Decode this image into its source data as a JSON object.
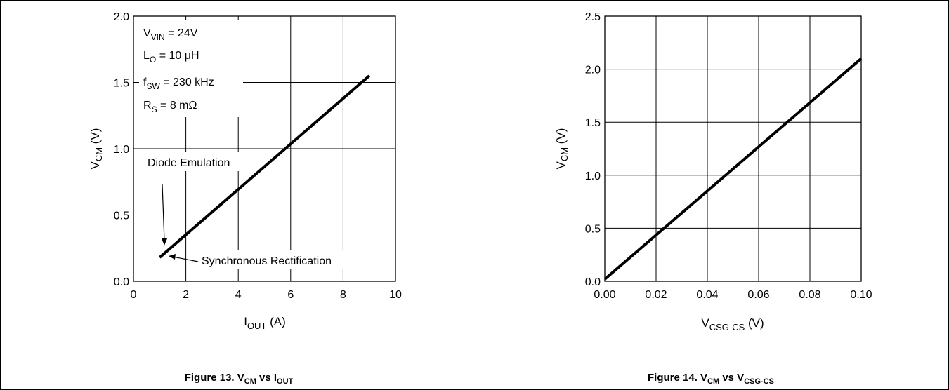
{
  "chart_data": [
    {
      "type": "line",
      "caption": {
        "prefix": "Figure 13. V",
        "sub1": "CM",
        "mid": " vs I",
        "sub2": "OUT"
      },
      "xlabel": {
        "main": "I",
        "sub": "OUT",
        "unit": " (A)"
      },
      "ylabel": {
        "main": "V",
        "sub": "CM",
        "unit": " (V)"
      },
      "xlim": [
        0,
        10
      ],
      "ylim": [
        0,
        2.0
      ],
      "x_ticks": [
        "0",
        "2",
        "4",
        "6",
        "8",
        "10"
      ],
      "y_ticks": [
        "0.0",
        "0.5",
        "1.0",
        "1.5",
        "2.0"
      ],
      "grid": true,
      "series": [
        {
          "x": [
            1,
            9
          ],
          "y": [
            0.18,
            1.55
          ]
        }
      ],
      "conditions": [
        {
          "main": "V",
          "sub": "VIN",
          "rest": " = 24V"
        },
        {
          "main": "L",
          "sub": "O",
          "rest": " = 10 μH"
        },
        {
          "main": "f",
          "sub": "SW",
          "rest": " = 230 kHz"
        },
        {
          "main": "R",
          "sub": "S",
          "rest": " = 8 mΩ"
        }
      ],
      "annotations": [
        {
          "text": "Diode Emulation"
        },
        {
          "text": "Synchronous Rectification"
        }
      ]
    },
    {
      "type": "line",
      "caption": {
        "prefix": "Figure 14. V",
        "sub1": "CM",
        "mid": " vs V",
        "sub2": "CSG-CS"
      },
      "xlabel": {
        "main": "V",
        "sub": "CSG-CS",
        "unit": " (V)"
      },
      "ylabel": {
        "main": "V",
        "sub": "CM",
        "unit": " (V)"
      },
      "xlim": [
        0,
        0.1
      ],
      "ylim": [
        0,
        2.5
      ],
      "x_ticks": [
        "0.00",
        "0.02",
        "0.04",
        "0.06",
        "0.08",
        "0.10"
      ],
      "y_ticks": [
        "0.0",
        "0.5",
        "1.0",
        "1.5",
        "2.0",
        "2.5"
      ],
      "grid": true,
      "series": [
        {
          "x": [
            0,
            0.1
          ],
          "y": [
            0.02,
            2.1
          ]
        }
      ]
    }
  ]
}
